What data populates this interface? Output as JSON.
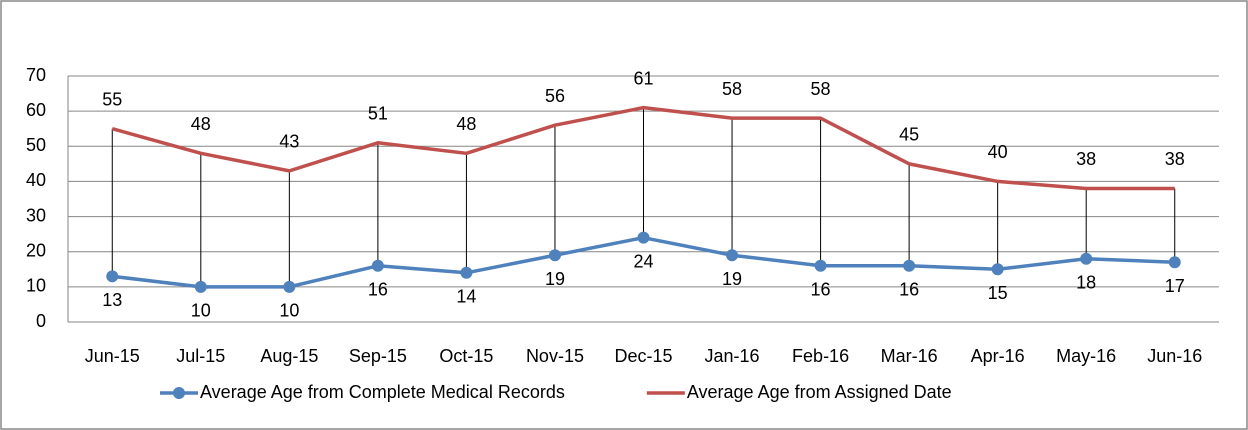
{
  "chart_data": {
    "type": "line",
    "categories": [
      "Jun-15",
      "Jul-15",
      "Aug-15",
      "Sep-15",
      "Oct-15",
      "Nov-15",
      "Dec-15",
      "Jan-16",
      "Feb-16",
      "Mar-16",
      "Apr-16",
      "May-16",
      "Jun-16"
    ],
    "series": [
      {
        "name": "Average Age from Complete Medical Records",
        "color": "#4f81bd",
        "marker": true,
        "label_position": "below",
        "values": [
          13,
          10,
          10,
          16,
          14,
          19,
          24,
          19,
          16,
          16,
          15,
          18,
          17
        ]
      },
      {
        "name": "Average Age from Assigned Date",
        "color": "#c0504d",
        "marker": false,
        "label_position": "above",
        "values": [
          55,
          48,
          43,
          51,
          48,
          56,
          61,
          58,
          58,
          45,
          40,
          38,
          38
        ]
      }
    ],
    "ylim": [
      0,
      70
    ],
    "yticks": [
      0,
      10,
      20,
      30,
      40,
      50,
      60,
      70
    ],
    "grid": true,
    "drop_lines": true,
    "legend": "bottom"
  }
}
